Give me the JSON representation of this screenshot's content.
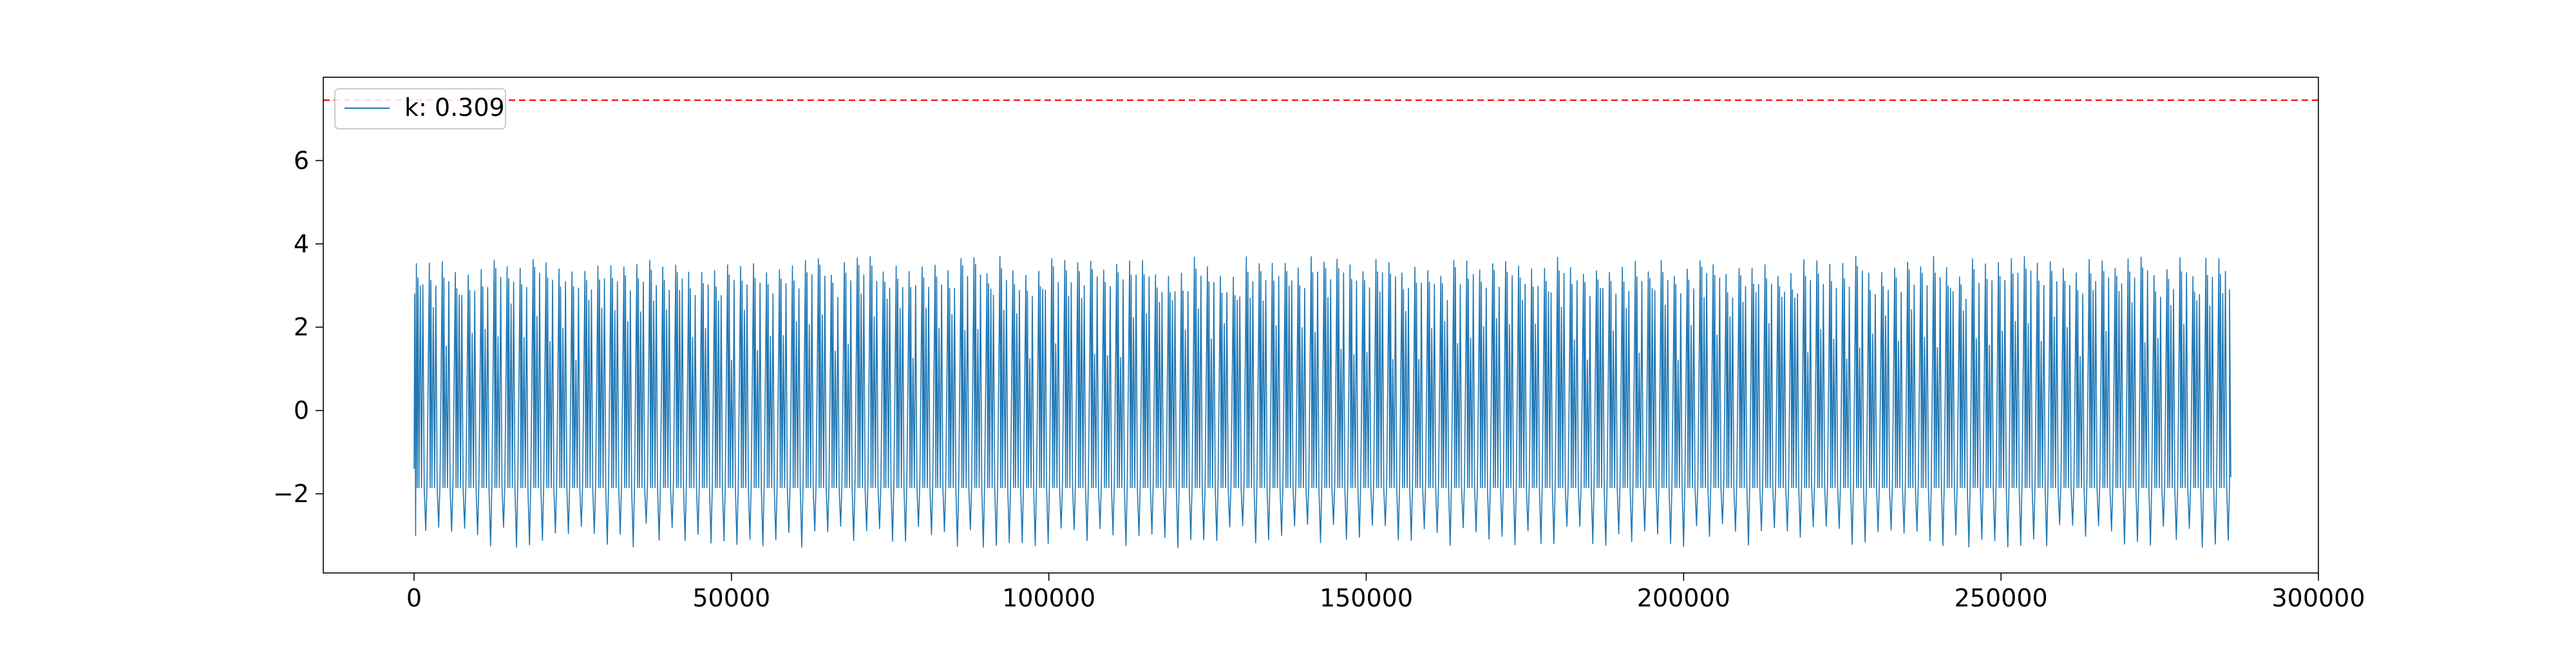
{
  "chart_data": {
    "type": "line",
    "title": "",
    "xlabel": "",
    "ylabel": "",
    "xlim": [
      -14300,
      300000
    ],
    "ylim": [
      -3.9,
      8.0
    ],
    "x_ticks": [
      {
        "value": 0,
        "label": "0"
      },
      {
        "value": 50000,
        "label": "50000"
      },
      {
        "value": 100000,
        "label": "100000"
      },
      {
        "value": 150000,
        "label": "150000"
      },
      {
        "value": 200000,
        "label": "200000"
      },
      {
        "value": 250000,
        "label": "250000"
      },
      {
        "value": 300000,
        "label": "300000"
      }
    ],
    "y_ticks": [
      {
        "value": -2,
        "label": "−2"
      },
      {
        "value": 0,
        "label": "0"
      },
      {
        "value": 2,
        "label": "2"
      },
      {
        "value": 4,
        "label": "4"
      },
      {
        "value": 6,
        "label": "6"
      }
    ],
    "grid": false,
    "legend_position": "top-left",
    "series": [
      {
        "name": "k: 0.309",
        "color": "#1f77b4",
        "x_range": [
          0,
          286000
        ],
        "cycles": 140,
        "peak_range": [
          3.2,
          3.7
        ],
        "trough_main": -1.85,
        "trough_deep_range": [
          -2.7,
          -3.3
        ],
        "start_value": 2.8
      }
    ],
    "reference_lines": [
      {
        "orientation": "horizontal",
        "y": 7.45,
        "color": "#ff0000",
        "style": "dashed"
      }
    ]
  }
}
